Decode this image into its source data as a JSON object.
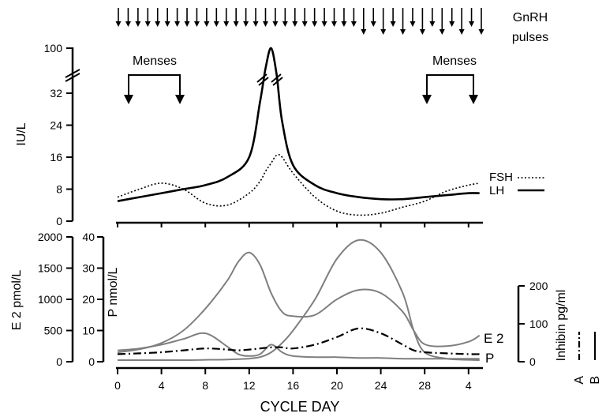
{
  "chart_data": [
    {
      "type": "line",
      "panel": "upper",
      "title": "",
      "xlabel": "",
      "ylabel": "IU/L",
      "y_ticks": [
        "0",
        "8",
        "16",
        "24",
        "32",
        "100"
      ],
      "y_axis_break": "between 32 and 100",
      "gnrh_label": [
        "GnRH",
        "pulses"
      ],
      "gnrh_pulses_count": 38,
      "menses_label": "Menses",
      "menses_periods": [
        [
          1,
          6
        ],
        [
          29,
          33
        ]
      ],
      "x": [
        0,
        2,
        4,
        6,
        8,
        10,
        12,
        13,
        13.5,
        14,
        14.5,
        15,
        16,
        18,
        20,
        22,
        24,
        26,
        28,
        30,
        32,
        33
      ],
      "series": [
        {
          "name": "FSH",
          "style": "dotted",
          "values": [
            6,
            8,
            9.5,
            8,
            4.5,
            4,
            7,
            10,
            12.5,
            14.5,
            16.5,
            16,
            12,
            6,
            2.5,
            1.5,
            2,
            3.5,
            5,
            7.5,
            9,
            9.5
          ]
        },
        {
          "name": "LH",
          "style": "solid-bold",
          "values": [
            5,
            6,
            7,
            8,
            9,
            11,
            16,
            30,
            70,
            100,
            60,
            25,
            14,
            9,
            7,
            6,
            5.5,
            5.5,
            6,
            6.5,
            7,
            7
          ]
        }
      ],
      "legend": [
        "FSH",
        "LH"
      ]
    },
    {
      "type": "line",
      "panel": "lower",
      "title": "",
      "xlabel": "CYCLE DAY",
      "x_tick_labels": [
        "0",
        "4",
        "8",
        "12",
        "16",
        "20",
        "24",
        "28",
        "4"
      ],
      "y_axes": [
        {
          "label": "E 2 pmol/L",
          "ticks": [
            "0",
            "500",
            "1000",
            "1500",
            "2000"
          ],
          "ylim": [
            0,
            2000
          ]
        },
        {
          "label": "P nmol/L",
          "ticks": [
            "0",
            "10",
            "20",
            "30",
            "40"
          ],
          "ylim": [
            0,
            40
          ]
        },
        {
          "label": "Inhibin pg/ml",
          "ticks": [
            "0",
            "100",
            "200"
          ],
          "ylim": [
            0,
            200
          ]
        }
      ],
      "x": [
        0,
        2,
        4,
        6,
        8,
        10,
        11,
        12,
        13,
        14,
        15,
        16,
        18,
        20,
        22,
        24,
        26,
        27,
        28,
        30,
        32,
        33
      ],
      "series": [
        {
          "name": "E 2",
          "axis": "E 2 pmol/L",
          "values": [
            150,
            200,
            300,
            500,
            850,
            1300,
            1600,
            1750,
            1550,
            1100,
            800,
            730,
            750,
            1000,
            1150,
            1100,
            800,
            500,
            280,
            250,
            320,
            420
          ]
        },
        {
          "name": "P",
          "axis": "P nmol/L",
          "values": [
            0.5,
            0.5,
            0.5,
            0.5,
            0.6,
            0.7,
            0.8,
            1,
            1.5,
            3,
            6,
            10,
            20,
            33,
            39,
            35,
            22,
            10,
            3,
            1,
            0.6,
            0.5
          ]
        },
        {
          "name": "A",
          "axis": "Inhibin pg/ml",
          "style": "dash-dot",
          "values": [
            20,
            22,
            25,
            30,
            35,
            32,
            30,
            32,
            35,
            38,
            38,
            35,
            45,
            65,
            88,
            75,
            45,
            30,
            25,
            22,
            20,
            20
          ]
        },
        {
          "name": "B",
          "axis": "Inhibin pg/ml",
          "style": "solid",
          "values": [
            30,
            35,
            45,
            60,
            75,
            40,
            20,
            15,
            20,
            45,
            25,
            15,
            12,
            12,
            10,
            10,
            8,
            8,
            8,
            8,
            8,
            8
          ]
        }
      ],
      "legend": [
        "E 2",
        "P",
        "A",
        "B"
      ]
    }
  ]
}
